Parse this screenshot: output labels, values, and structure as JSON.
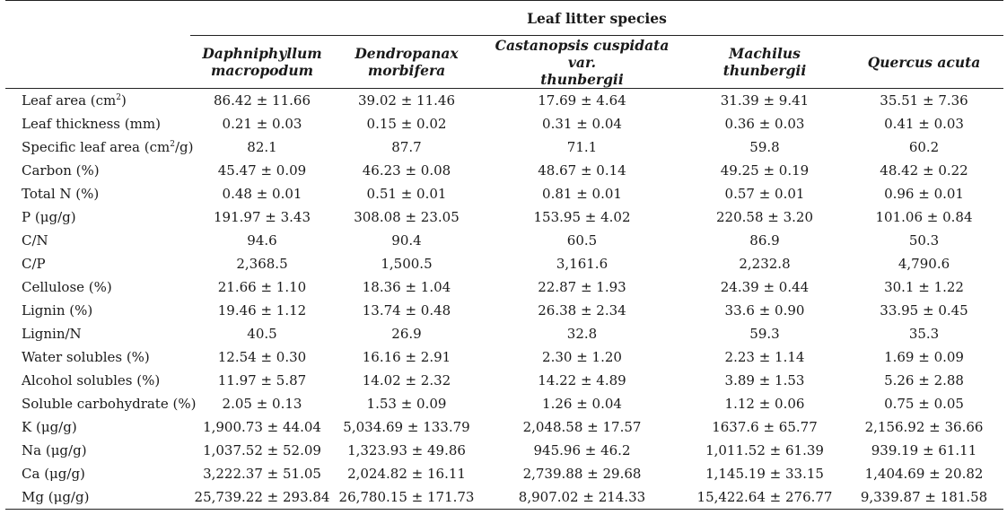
{
  "header": {
    "group_title": "Leaf litter species",
    "species": [
      {
        "line1": "Daphniphyllum",
        "line2": "macropodum"
      },
      {
        "line1": "Dendropanax",
        "line2": "morbifera"
      },
      {
        "line1": "Castanopsis cuspidata var.",
        "line2": "thunbergii"
      },
      {
        "line1": "Machilus thunbergii",
        "line2": ""
      },
      {
        "line1": "Quercus acuta",
        "line2": ""
      }
    ]
  },
  "rows": [
    {
      "label_pre": "Leaf area (cm",
      "label_sup": "2",
      "label_post": ")",
      "values": [
        "86.42 ± 11.66",
        "39.02 ± 11.46",
        "17.69 ± 4.64",
        "31.39 ± 9.41",
        "35.51 ± 7.36"
      ]
    },
    {
      "label_pre": "Leaf thickness (mm)",
      "label_sup": "",
      "label_post": "",
      "values": [
        "0.21 ± 0.03",
        "0.15 ± 0.02",
        "0.31 ± 0.04",
        "0.36 ± 0.03",
        "0.41 ± 0.03"
      ]
    },
    {
      "label_pre": "Specific leaf area (cm",
      "label_sup": "2",
      "label_post": "/g)",
      "values": [
        "82.1",
        "87.7",
        "71.1",
        "59.8",
        "60.2"
      ]
    },
    {
      "label_pre": "Carbon (%)",
      "label_sup": "",
      "label_post": "",
      "values": [
        "45.47 ± 0.09",
        "46.23 ± 0.08",
        "48.67 ± 0.14",
        "49.25 ± 0.19",
        "48.42 ± 0.22"
      ]
    },
    {
      "label_pre": "Total N (%)",
      "label_sup": "",
      "label_post": "",
      "values": [
        "0.48 ± 0.01",
        "0.51 ± 0.01",
        "0.81 ± 0.01",
        "0.57 ± 0.01",
        "0.96 ± 0.01"
      ]
    },
    {
      "label_pre": "P (μg/g)",
      "label_sup": "",
      "label_post": "",
      "values": [
        "191.97 ± 3.43",
        "308.08 ± 23.05",
        "153.95 ± 4.02",
        "220.58 ± 3.20",
        "101.06 ± 0.84"
      ]
    },
    {
      "label_pre": "C/N",
      "label_sup": "",
      "label_post": "",
      "values": [
        "94.6",
        "90.4",
        "60.5",
        "86.9",
        "50.3"
      ]
    },
    {
      "label_pre": "C/P",
      "label_sup": "",
      "label_post": "",
      "values": [
        "2,368.5",
        "1,500.5",
        "3,161.6",
        "2,232.8",
        "4,790.6"
      ]
    },
    {
      "label_pre": "Cellulose (%)",
      "label_sup": "",
      "label_post": "",
      "values": [
        "21.66 ± 1.10",
        "18.36 ± 1.04",
        "22.87 ± 1.93",
        "24.39 ± 0.44",
        "30.1 ± 1.22"
      ]
    },
    {
      "label_pre": "Lignin (%)",
      "label_sup": "",
      "label_post": "",
      "values": [
        "19.46 ± 1.12",
        "13.74 ± 0.48",
        "26.38 ± 2.34",
        "33.6 ± 0.90",
        "33.95 ± 0.45"
      ]
    },
    {
      "label_pre": "Lignin/N",
      "label_sup": "",
      "label_post": "",
      "values": [
        "40.5",
        "26.9",
        "32.8",
        "59.3",
        "35.3"
      ]
    },
    {
      "label_pre": "Water solubles (%)",
      "label_sup": "",
      "label_post": "",
      "values": [
        "12.54 ± 0.30",
        "16.16 ± 2.91",
        "2.30 ± 1.20",
        "2.23 ± 1.14",
        "1.69 ± 0.09"
      ]
    },
    {
      "label_pre": "Alcohol solubles (%)",
      "label_sup": "",
      "label_post": "",
      "values": [
        "11.97 ± 5.87",
        "14.02 ± 2.32",
        "14.22 ± 4.89",
        "3.89 ± 1.53",
        "5.26 ± 2.88"
      ]
    },
    {
      "label_pre": "Soluble carbohydrate (%)",
      "label_sup": "",
      "label_post": "",
      "values": [
        "2.05 ± 0.13",
        "1.53 ± 0.09",
        "1.26 ± 0.04",
        "1.12 ± 0.06",
        "0.75 ± 0.05"
      ]
    },
    {
      "label_pre": "K (μg/g)",
      "label_sup": "",
      "label_post": "",
      "values": [
        "1,900.73 ± 44.04",
        "5,034.69 ± 133.79",
        "2,048.58 ± 17.57",
        "1637.6 ± 65.77",
        "2,156.92 ± 36.66"
      ]
    },
    {
      "label_pre": "Na (μg/g)",
      "label_sup": "",
      "label_post": "",
      "values": [
        "1,037.52 ± 52.09",
        "1,323.93 ± 49.86",
        "945.96 ± 46.2",
        "1,011.52 ± 61.39",
        "939.19 ± 61.11"
      ]
    },
    {
      "label_pre": "Ca (μg/g)",
      "label_sup": "",
      "label_post": "",
      "values": [
        "3,222.37 ± 51.05",
        "2,024.82 ± 16.11",
        "2,739.88 ± 29.68",
        "1,145.19 ± 33.15",
        "1,404.69 ± 20.82"
      ]
    },
    {
      "label_pre": "Mg (μg/g)",
      "label_sup": "",
      "label_post": "",
      "values": [
        "25,739.22 ± 293.84",
        "26,780.15 ± 171.73",
        "8,907.02 ± 214.33",
        "15,422.64 ± 276.77",
        "9,339.87 ± 181.58"
      ]
    }
  ]
}
